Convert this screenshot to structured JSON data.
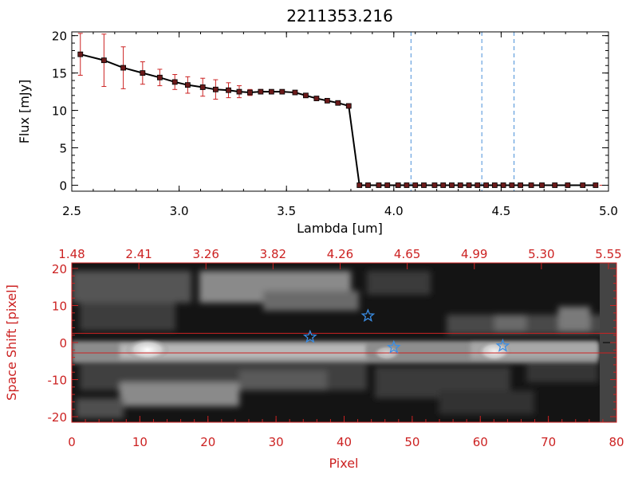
{
  "colors": {
    "flux_line": "#000000",
    "error_bar": "#cc2222",
    "marker_fill": "#6b1a1a",
    "dashed_line": "#4a90d9",
    "secondary_axis": "#cc2222",
    "star": "#3a8ee6"
  },
  "chart_data": [
    {
      "type": "line",
      "title": "2211353.216",
      "xlabel": "Lambda [um]",
      "ylabel": "Flux [mJy]",
      "xlim": [
        2.5,
        5.0
      ],
      "ylim": [
        -0.8,
        20.5
      ],
      "xticks": [
        "2.5",
        "3.0",
        "3.5",
        "4.0",
        "4.5",
        "5.0"
      ],
      "yticks": [
        "0",
        "5",
        "10",
        "15",
        "20"
      ],
      "vlines": [
        4.08,
        4.41,
        4.56
      ],
      "series": [
        {
          "x": [
            2.54,
            2.65,
            2.74,
            2.83,
            2.91,
            2.98,
            3.04,
            3.11,
            3.17,
            3.23,
            3.28,
            3.33,
            3.38,
            3.43,
            3.48,
            3.54,
            3.59,
            3.64,
            3.69,
            3.74,
            3.79,
            3.84,
            3.88,
            3.93,
            3.97,
            4.02,
            4.06,
            4.1,
            4.14,
            4.19,
            4.23,
            4.27,
            4.31,
            4.35,
            4.39,
            4.43,
            4.47,
            4.51,
            4.55,
            4.59,
            4.64,
            4.69,
            4.75,
            4.81,
            4.88,
            4.94
          ],
          "y": [
            17.5,
            16.7,
            15.7,
            15.0,
            14.4,
            13.8,
            13.4,
            13.1,
            12.8,
            12.7,
            12.5,
            12.4,
            12.5,
            12.5,
            12.5,
            12.4,
            12.0,
            11.6,
            11.3,
            11.0,
            10.6,
            0,
            0,
            0,
            0,
            0,
            0,
            0,
            0,
            0,
            0,
            0,
            0,
            0,
            0,
            0,
            0,
            0,
            0,
            0,
            0,
            0,
            0,
            0,
            0,
            0
          ],
          "yerr": [
            2.8,
            3.5,
            2.8,
            1.5,
            1.1,
            1.0,
            1.1,
            1.2,
            1.3,
            1.0,
            0.8,
            0.4,
            0.3,
            0.2,
            0.2,
            0.2,
            0.2,
            0.2,
            0.2,
            0.2,
            0.2,
            0,
            0,
            0,
            0,
            0,
            0,
            0,
            0,
            0,
            0,
            0,
            0,
            0,
            0,
            0,
            0,
            0,
            0,
            0,
            0,
            0,
            0,
            0,
            0,
            0
          ]
        }
      ]
    },
    {
      "type": "heatmap",
      "xlabel": "Pixel",
      "ylabel": "Space Shift [pixel]",
      "xlim": [
        0,
        80
      ],
      "ylim": [
        -21.5,
        21.5
      ],
      "xticks": [
        "0",
        "10",
        "20",
        "30",
        "40",
        "50",
        "60",
        "70",
        "80"
      ],
      "yticks": [
        "-20",
        "-10",
        "0",
        "10",
        "20"
      ],
      "top_axis_ticks": [
        "1.48",
        "2.41",
        "3.26",
        "3.82",
        "4.26",
        "4.65",
        "4.99",
        "5.30",
        "5.55"
      ],
      "hlines": [
        2.5,
        -2.8
      ],
      "stars": [
        {
          "x": 35,
          "y": 1.5
        },
        {
          "x": 43.5,
          "y": 7.2
        },
        {
          "x": 47.3,
          "y": -1.3
        },
        {
          "x": 63.3,
          "y": -0.9
        }
      ]
    }
  ]
}
